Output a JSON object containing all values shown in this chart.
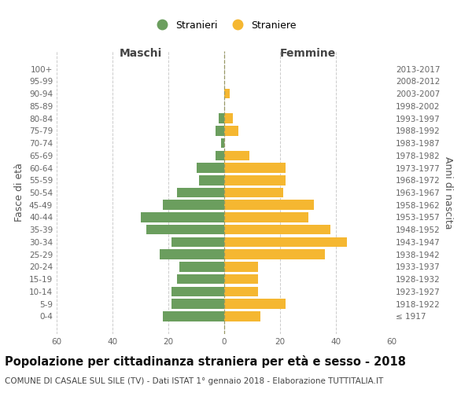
{
  "age_groups": [
    "100+",
    "95-99",
    "90-94",
    "85-89",
    "80-84",
    "75-79",
    "70-74",
    "65-69",
    "60-64",
    "55-59",
    "50-54",
    "45-49",
    "40-44",
    "35-39",
    "30-34",
    "25-29",
    "20-24",
    "15-19",
    "10-14",
    "5-9",
    "0-4"
  ],
  "birth_years": [
    "≤ 1917",
    "1918-1922",
    "1923-1927",
    "1928-1932",
    "1933-1937",
    "1938-1942",
    "1943-1947",
    "1948-1952",
    "1953-1957",
    "1958-1962",
    "1963-1967",
    "1968-1972",
    "1973-1977",
    "1978-1982",
    "1983-1987",
    "1988-1992",
    "1993-1997",
    "1998-2002",
    "2003-2007",
    "2008-2012",
    "2013-2017"
  ],
  "maschi": [
    0,
    0,
    0,
    0,
    2,
    3,
    1,
    3,
    10,
    9,
    17,
    22,
    30,
    28,
    19,
    23,
    16,
    17,
    19,
    19,
    22
  ],
  "femmine": [
    0,
    0,
    2,
    0,
    3,
    5,
    0,
    9,
    22,
    22,
    21,
    32,
    30,
    38,
    44,
    36,
    12,
    12,
    12,
    22,
    13
  ],
  "male_color": "#6b9e5e",
  "female_color": "#f5b731",
  "title": "Popolazione per cittadinanza straniera per età e sesso - 2018",
  "subtitle": "COMUNE DI CASALE SUL SILE (TV) - Dati ISTAT 1° gennaio 2018 - Elaborazione TUTTITALIA.IT",
  "xlabel_left": "Maschi",
  "xlabel_right": "Femmine",
  "ylabel_left": "Fasce di età",
  "ylabel_right": "Anni di nascita",
  "legend_male": "Stranieri",
  "legend_female": "Straniere",
  "xlim": 60,
  "bg_color": "#ffffff",
  "grid_color": "#cccccc",
  "bar_height": 0.8,
  "title_fontsize": 10.5,
  "subtitle_fontsize": 7.5,
  "axis_label_fontsize": 9,
  "tick_fontsize": 7.5,
  "legend_fontsize": 9
}
